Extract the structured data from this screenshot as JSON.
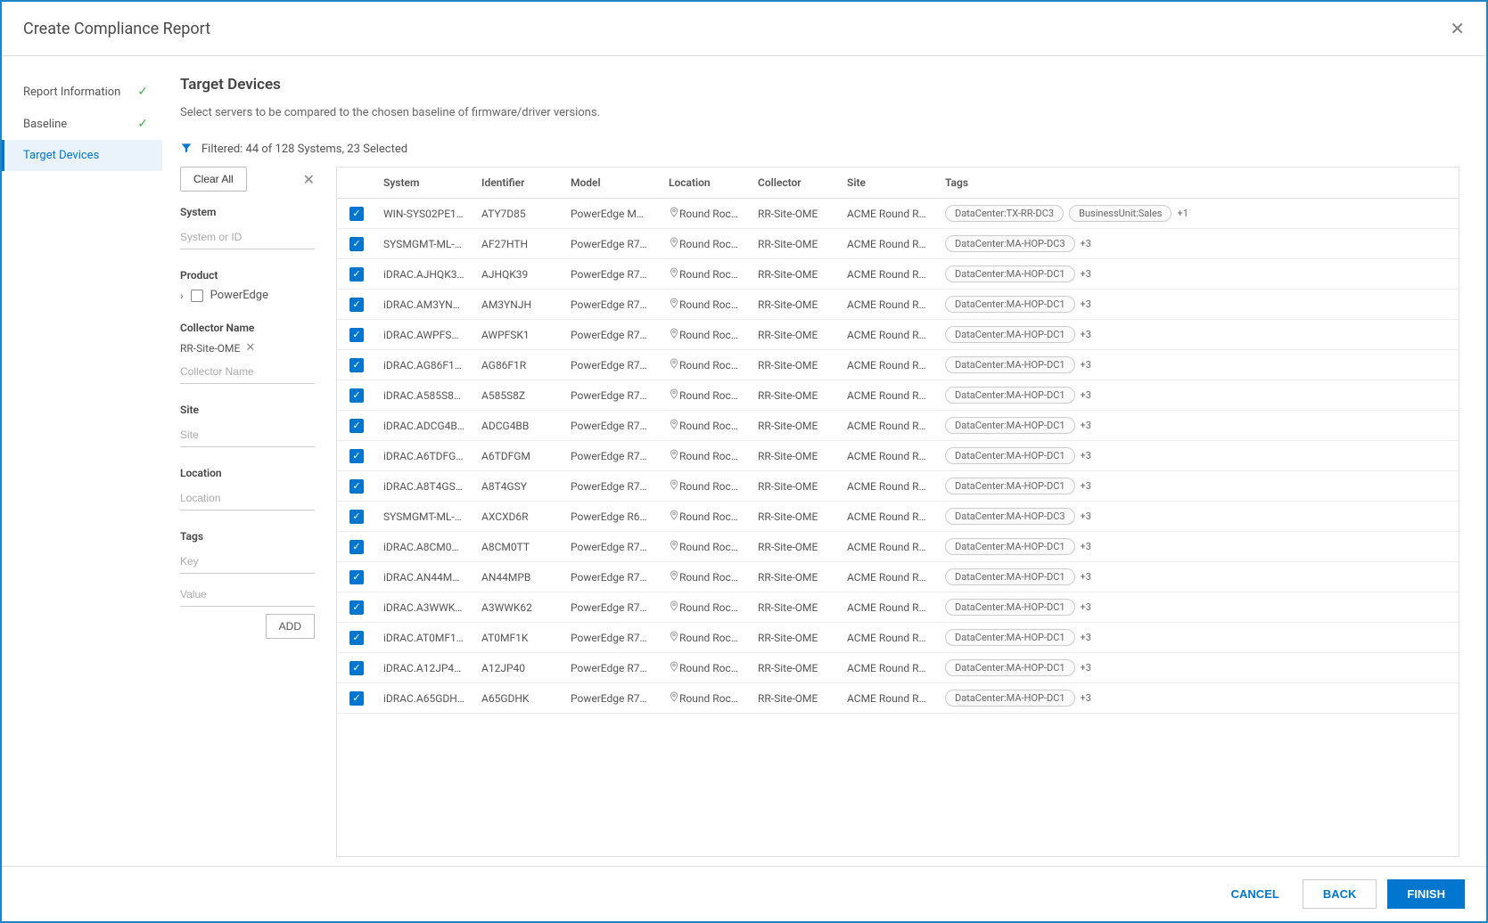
{
  "modal": {
    "title": "Create Compliance Report"
  },
  "steps": [
    {
      "label": "Report Information",
      "done": true,
      "active": false
    },
    {
      "label": "Baseline",
      "done": true,
      "active": false
    },
    {
      "label": "Target Devices",
      "done": false,
      "active": true
    }
  ],
  "main": {
    "title": "Target Devices",
    "description": "Select servers to be compared to the chosen baseline of firmware/driver versions.",
    "filter_summary": "Filtered: 44 of 128 Systems, 23 Selected"
  },
  "filters": {
    "clear_all": "Clear All",
    "system": {
      "label": "System",
      "placeholder": "System or ID"
    },
    "product": {
      "label": "Product",
      "option": "PowerEdge"
    },
    "collector": {
      "label": "Collector Name",
      "chip": "RR-Site-OME",
      "placeholder": "Collector Name"
    },
    "site": {
      "label": "Site",
      "placeholder": "Site"
    },
    "location": {
      "label": "Location",
      "placeholder": "Location"
    },
    "tags": {
      "label": "Tags",
      "key_placeholder": "Key",
      "value_placeholder": "Value",
      "add": "ADD"
    }
  },
  "table": {
    "columns": [
      "System",
      "Identifier",
      "Model",
      "Location",
      "Collector",
      "Site",
      "Tags"
    ],
    "rows": [
      {
        "system": "WIN-SYS02PE1…",
        "identifier": "ATY7D85",
        "model": "PowerEdge M…",
        "location": "Round Roc…",
        "collector": "RR-Site-OME",
        "site": "ACME Round R…",
        "tags": [
          "DataCenter:TX-RR-DC3",
          "BusinessUnit:Sales"
        ],
        "more": "+1"
      },
      {
        "system": "SYSMGMT-ML-…",
        "identifier": "AF27HTH",
        "model": "PowerEdge R7…",
        "location": "Round Roc…",
        "collector": "RR-Site-OME",
        "site": "ACME Round R…",
        "tags": [
          "DataCenter:MA-HOP-DC3"
        ],
        "more": "+3"
      },
      {
        "system": "iDRAC.AJHQK3…",
        "identifier": "AJHQK39",
        "model": "PowerEdge R7…",
        "location": "Round Roc…",
        "collector": "RR-Site-OME",
        "site": "ACME Round R…",
        "tags": [
          "DataCenter:MA-HOP-DC1"
        ],
        "more": "+3"
      },
      {
        "system": "iDRAC.AM3YN…",
        "identifier": "AM3YNJH",
        "model": "PowerEdge R7…",
        "location": "Round Roc…",
        "collector": "RR-Site-OME",
        "site": "ACME Round R…",
        "tags": [
          "DataCenter:MA-HOP-DC1"
        ],
        "more": "+3"
      },
      {
        "system": "iDRAC.AWPFS…",
        "identifier": "AWPFSK1",
        "model": "PowerEdge R7…",
        "location": "Round Roc…",
        "collector": "RR-Site-OME",
        "site": "ACME Round R…",
        "tags": [
          "DataCenter:MA-HOP-DC1"
        ],
        "more": "+3"
      },
      {
        "system": "iDRAC.AG86F1…",
        "identifier": "AG86F1R",
        "model": "PowerEdge R7…",
        "location": "Round Roc…",
        "collector": "RR-Site-OME",
        "site": "ACME Round R…",
        "tags": [
          "DataCenter:MA-HOP-DC1"
        ],
        "more": "+3"
      },
      {
        "system": "iDRAC.A585S8…",
        "identifier": "A585S8Z",
        "model": "PowerEdge R7…",
        "location": "Round Roc…",
        "collector": "RR-Site-OME",
        "site": "ACME Round R…",
        "tags": [
          "DataCenter:MA-HOP-DC1"
        ],
        "more": "+3"
      },
      {
        "system": "iDRAC.ADCG4B…",
        "identifier": "ADCG4BB",
        "model": "PowerEdge R7…",
        "location": "Round Roc…",
        "collector": "RR-Site-OME",
        "site": "ACME Round R…",
        "tags": [
          "DataCenter:MA-HOP-DC1"
        ],
        "more": "+3"
      },
      {
        "system": "iDRAC.A6TDFG…",
        "identifier": "A6TDFGM",
        "model": "PowerEdge R7…",
        "location": "Round Roc…",
        "collector": "RR-Site-OME",
        "site": "ACME Round R…",
        "tags": [
          "DataCenter:MA-HOP-DC1"
        ],
        "more": "+3"
      },
      {
        "system": "iDRAC.A8T4GS…",
        "identifier": "A8T4GSY",
        "model": "PowerEdge R7…",
        "location": "Round Roc…",
        "collector": "RR-Site-OME",
        "site": "ACME Round R…",
        "tags": [
          "DataCenter:MA-HOP-DC1"
        ],
        "more": "+3"
      },
      {
        "system": "SYSMGMT-ML-…",
        "identifier": "AXCXD6R",
        "model": "PowerEdge R6…",
        "location": "Round Roc…",
        "collector": "RR-Site-OME",
        "site": "ACME Round R…",
        "tags": [
          "DataCenter:MA-HOP-DC3"
        ],
        "more": "+3"
      },
      {
        "system": "iDRAC.A8CM0…",
        "identifier": "A8CM0TT",
        "model": "PowerEdge R7…",
        "location": "Round Roc…",
        "collector": "RR-Site-OME",
        "site": "ACME Round R…",
        "tags": [
          "DataCenter:MA-HOP-DC1"
        ],
        "more": "+3"
      },
      {
        "system": "iDRAC.AN44M…",
        "identifier": "AN44MPB",
        "model": "PowerEdge R7…",
        "location": "Round Roc…",
        "collector": "RR-Site-OME",
        "site": "ACME Round R…",
        "tags": [
          "DataCenter:MA-HOP-DC1"
        ],
        "more": "+3"
      },
      {
        "system": "iDRAC.A3WWK…",
        "identifier": "A3WWK62",
        "model": "PowerEdge R7…",
        "location": "Round Roc…",
        "collector": "RR-Site-OME",
        "site": "ACME Round R…",
        "tags": [
          "DataCenter:MA-HOP-DC1"
        ],
        "more": "+3"
      },
      {
        "system": "iDRAC.AT0MF1…",
        "identifier": "AT0MF1K",
        "model": "PowerEdge R7…",
        "location": "Round Roc…",
        "collector": "RR-Site-OME",
        "site": "ACME Round R…",
        "tags": [
          "DataCenter:MA-HOP-DC1"
        ],
        "more": "+3"
      },
      {
        "system": "iDRAC.A12JP4…",
        "identifier": "A12JP40",
        "model": "PowerEdge R7…",
        "location": "Round Roc…",
        "collector": "RR-Site-OME",
        "site": "ACME Round R…",
        "tags": [
          "DataCenter:MA-HOP-DC1"
        ],
        "more": "+3"
      },
      {
        "system": "iDRAC.A65GDH…",
        "identifier": "A65GDHK",
        "model": "PowerEdge R7…",
        "location": "Round Roc…",
        "collector": "RR-Site-OME",
        "site": "ACME Round R…",
        "tags": [
          "DataCenter:MA-HOP-DC1"
        ],
        "more": "+3"
      }
    ]
  },
  "footer": {
    "cancel": "CANCEL",
    "back": "BACK",
    "finish": "FINISH"
  }
}
